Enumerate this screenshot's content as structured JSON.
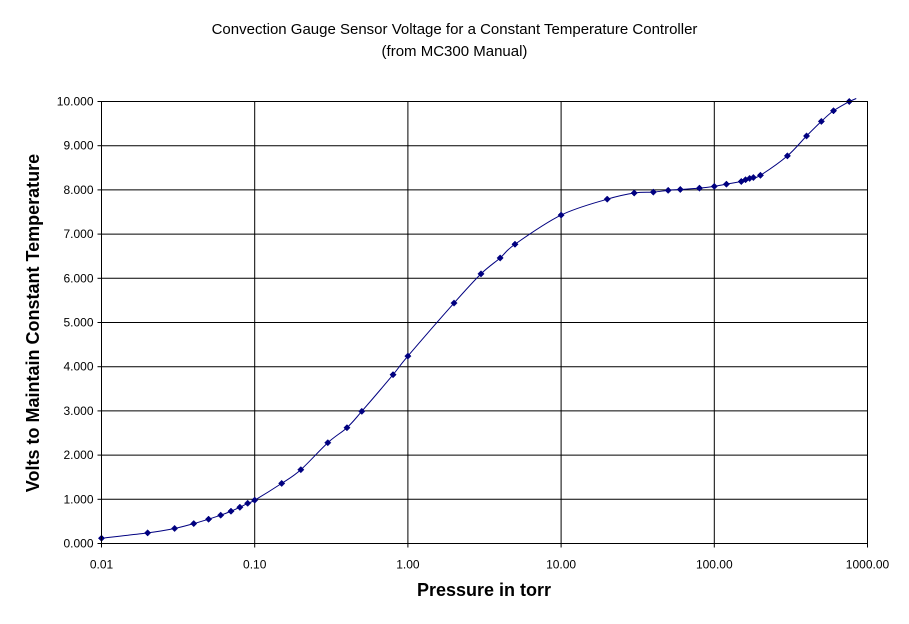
{
  "chart_data": {
    "type": "scatter",
    "title": "Convection Gauge Sensor Voltage for a Constant Temperature Controller",
    "subtitle": "(from MC300 Manual)",
    "xlabel": "Pressure in torr",
    "ylabel": "Volts to Maintain Constant Temperature",
    "x_scale": "log",
    "xlim": [
      0.01,
      1000
    ],
    "ylim": [
      0,
      10
    ],
    "grid": true,
    "legend": "none",
    "x_ticks": [
      0.01,
      0.1,
      1,
      10,
      100,
      1000
    ],
    "x_tick_labels": [
      "0.01",
      "0.10",
      "1.00",
      "10.00",
      "100.00",
      "1000.00"
    ],
    "y_ticks": [
      0,
      1,
      2,
      3,
      4,
      5,
      6,
      7,
      8,
      9,
      10
    ],
    "y_tick_labels": [
      "0.000",
      "1.000",
      "2.000",
      "3.000",
      "4.000",
      "5.000",
      "6.000",
      "7.000",
      "8.000",
      "9.000",
      "10.000"
    ],
    "series_color": "#000080",
    "x": [
      0.01,
      0.02,
      0.03,
      0.04,
      0.05,
      0.06,
      0.07,
      0.08,
      0.09,
      0.1,
      0.15,
      0.2,
      0.3,
      0.4,
      0.5,
      0.8,
      1,
      2,
      3,
      4,
      5,
      10,
      20,
      30,
      40,
      50,
      60,
      80,
      100,
      120,
      150,
      160,
      170,
      180,
      200,
      300,
      400,
      500,
      600,
      760
    ],
    "y": [
      0.12,
      0.24,
      0.34,
      0.45,
      0.55,
      0.64,
      0.73,
      0.82,
      0.91,
      0.98,
      1.36,
      1.67,
      2.28,
      2.62,
      2.99,
      3.82,
      4.24,
      5.44,
      6.1,
      6.46,
      6.77,
      7.43,
      7.79,
      7.93,
      7.95,
      7.99,
      8.01,
      8.04,
      8.08,
      8.13,
      8.19,
      8.23,
      8.26,
      8.28,
      8.33,
      8.77,
      9.22,
      9.55,
      9.79,
      10.0
    ]
  }
}
